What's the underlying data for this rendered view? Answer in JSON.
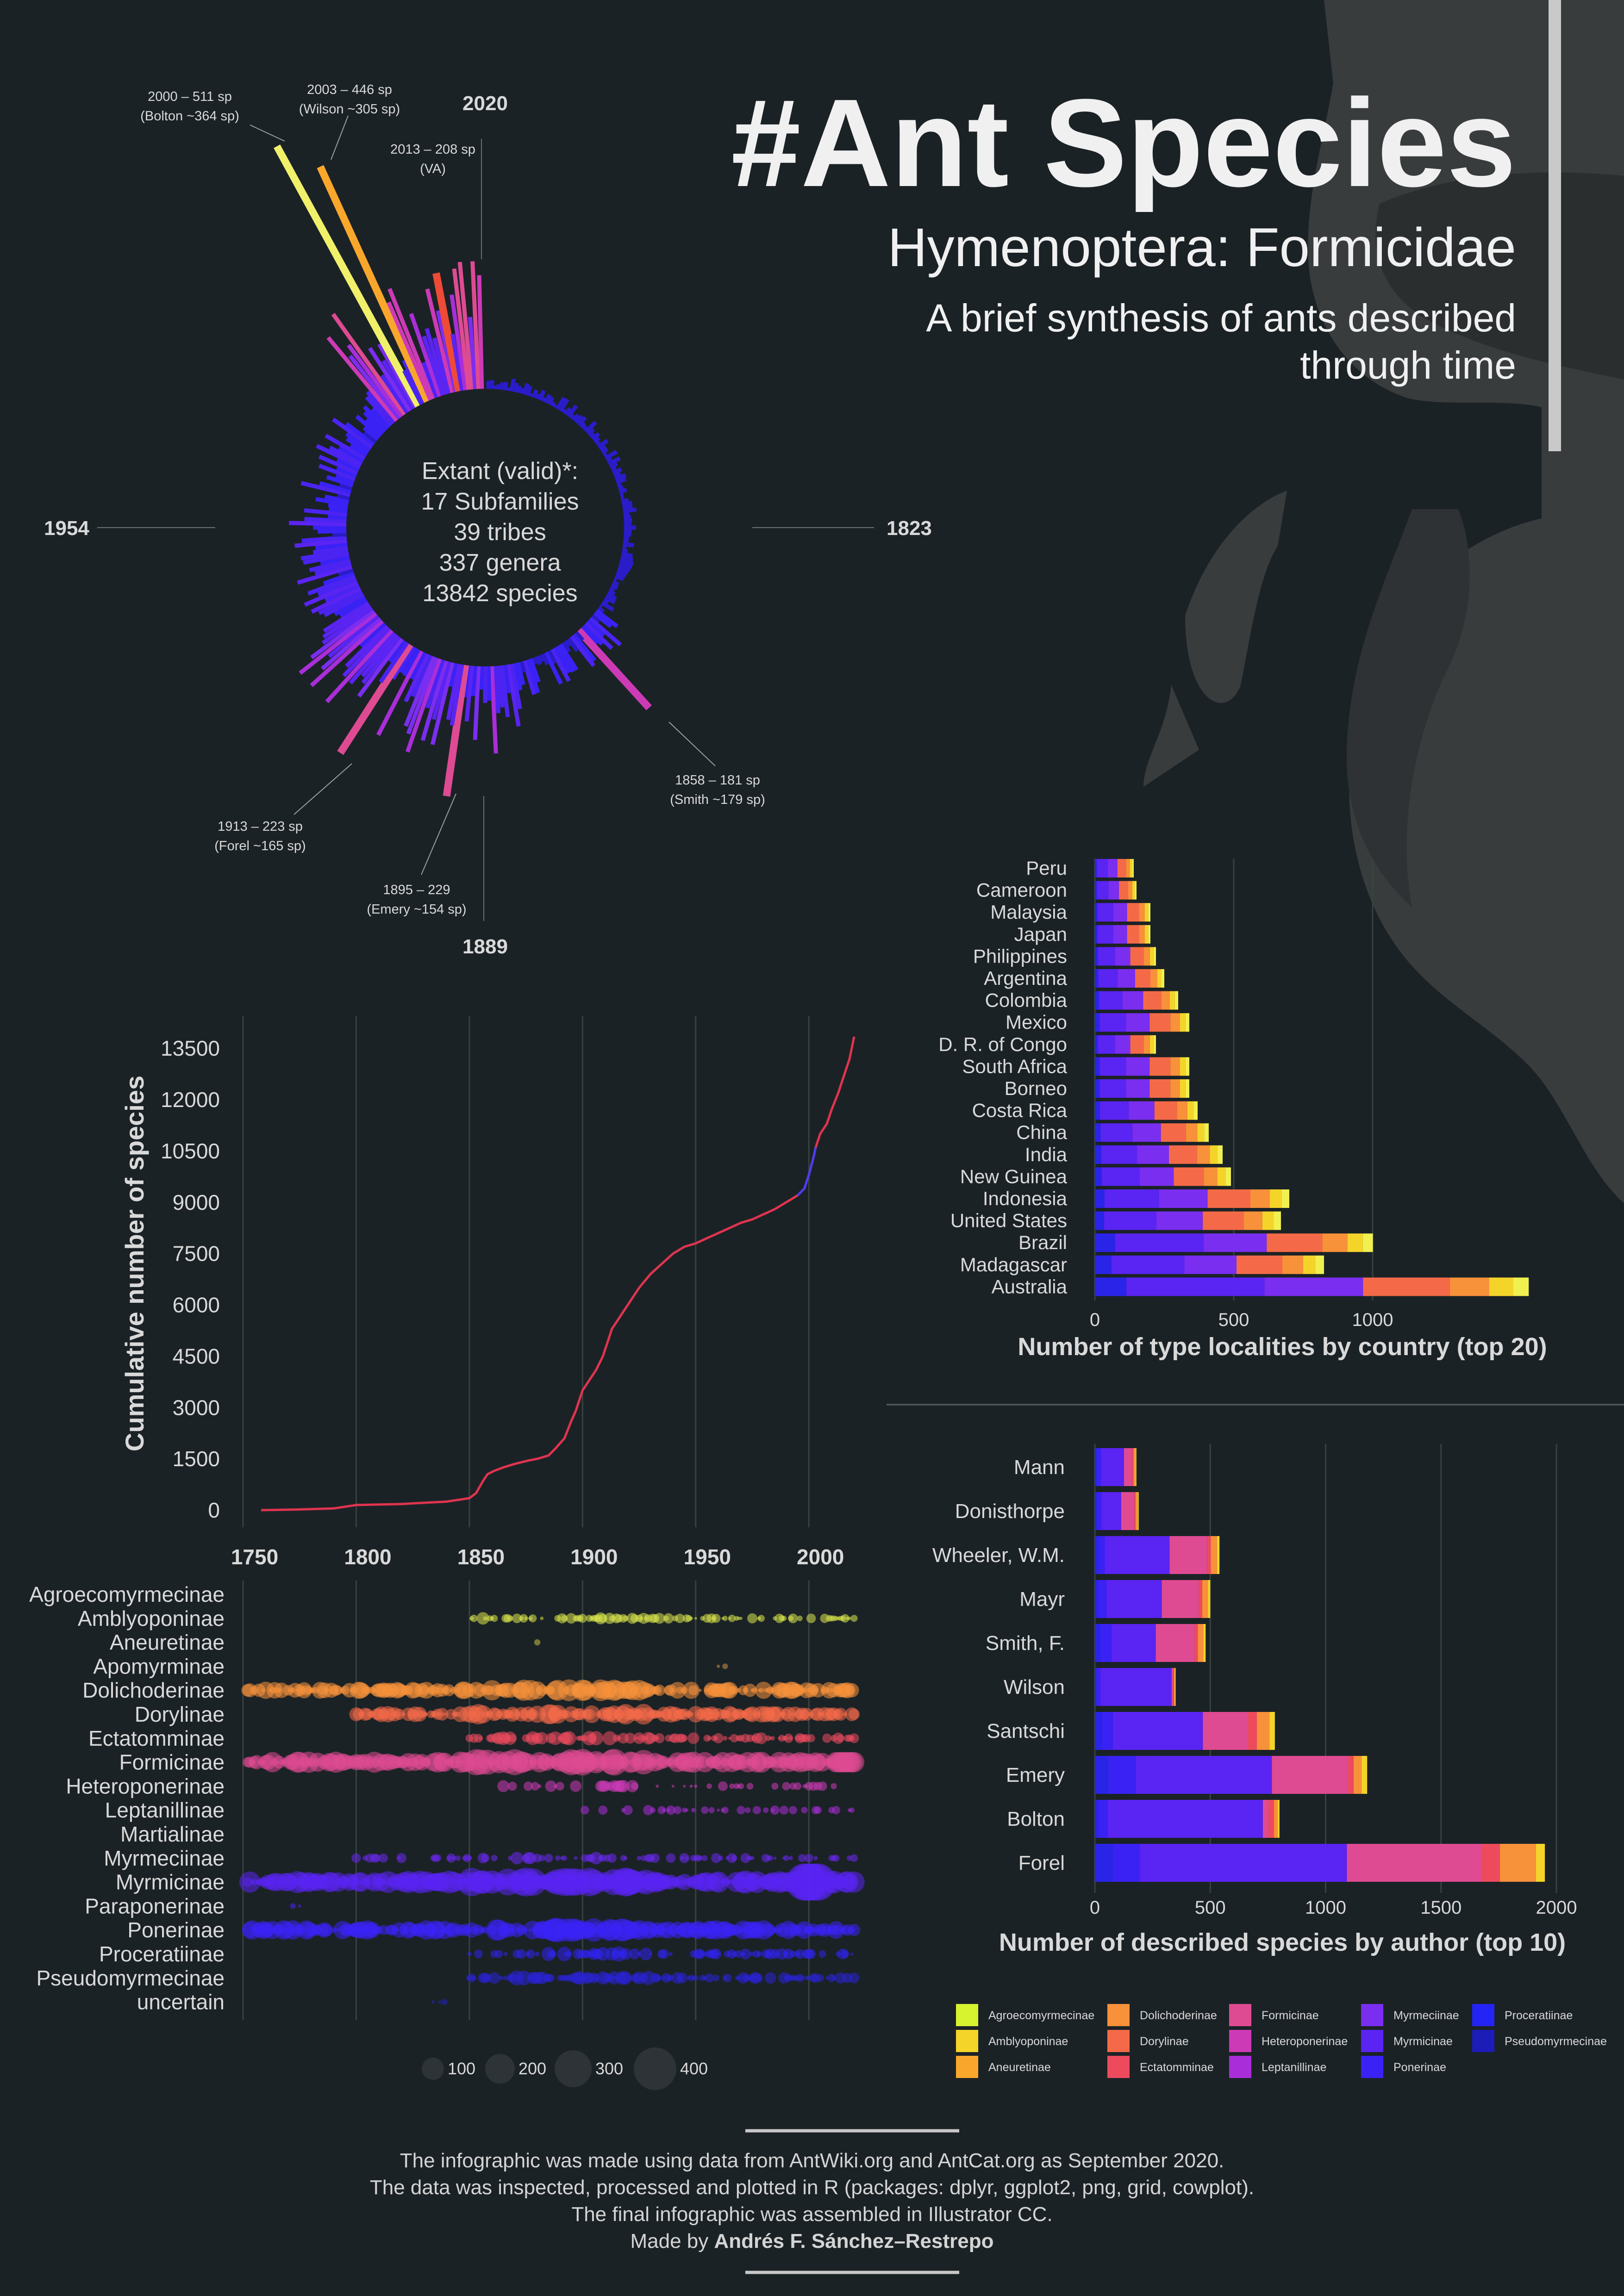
{
  "header": {
    "title": "#Ant Species",
    "subtitle": "Hymenoptera: Formicidae",
    "tagline_line1": "A brief synthesis of ants described",
    "tagline_line2": "through time"
  },
  "colors": {
    "background": "#1b2226",
    "text": "#d9d9d9",
    "line": "#e0344f",
    "grid": "#36433f",
    "ant_silhouette": "#3a3d3e",
    "subfamilies": {
      "Agroecomyrmecinae": "#d7f22e",
      "Amblyoponinae": "#f5d42a",
      "Aneuretinae": "#f8a72c",
      "Dolichoderinae": "#f7913a",
      "Dorylinae": "#f46a48",
      "Ectatomminae": "#ee4a5e",
      "Formicinae": "#de4b92",
      "Heteroponerinae": "#cd3ab6",
      "Leptanillinae": "#a92ed9",
      "Myrmeciinae": "#7a2ef0",
      "Myrmicinae": "#5a24f2",
      "Ponerinae": "#3a22f5",
      "Proceratiinae": "#2424f4",
      "Pseudomyrmecinae": "#1c1cb8"
    }
  },
  "radial": {
    "center_lines": [
      "Extant (valid)*:",
      "17 Subfamilies",
      "39 tribes",
      "337 genera",
      "13842 species"
    ],
    "year_labels": [
      "2020",
      "1823",
      "1889",
      "1954"
    ],
    "annotations": [
      {
        "line1": "2000 – 511 sp",
        "line2": "(Bolton ~364 sp)"
      },
      {
        "line1": "2003 – 446 sp",
        "line2": "(Wilson ~305 sp)"
      },
      {
        "line1": "2013 – 208 sp",
        "line2": "(VA)"
      },
      {
        "line1": "1858 – 181 sp",
        "line2": "(Smith ~179 sp)"
      },
      {
        "line1": "1895 – 229",
        "line2": "(Emery ~154 sp)"
      },
      {
        "line1": "1913 – 223 sp",
        "line2": "(Forel ~165 sp)"
      }
    ]
  },
  "legend_items": [
    "Agroecomyrmecinae",
    "Amblyoponinae",
    "Aneuretinae",
    "Dolichoderinae",
    "Dorylinae",
    "Ectatomminae",
    "Formicinae",
    "Heteroponerinae",
    "Leptanillinae",
    "Myrmeciinae",
    "Myrmicinae",
    "Ponerinae",
    "Proceratiinae",
    "Pseudomyrmecinae"
  ],
  "size_legend": [
    "100",
    "200",
    "300",
    "400"
  ],
  "footer": {
    "line1": "The infographic was made using data from AntWiki.org and AntCat.org as September 2020.",
    "line2": "The data was inspected, processed and plotted in R (packages: dplyr, ggplot2, png, grid, cowplot).",
    "line3": "The final infographic was assembled in Illustrator CC.",
    "line4_prefix": "Made by ",
    "author": "Andrés F. Sánchez–Restrepo"
  },
  "chart_data": [
    {
      "type": "bar",
      "name": "radial_species_per_year",
      "x_range": [
        1758,
        2020
      ],
      "highlighted": [
        {
          "year": 2000,
          "value": 511
        },
        {
          "year": 2003,
          "value": 446
        },
        {
          "year": 2013,
          "value": 208
        },
        {
          "year": 1858,
          "value": 181
        },
        {
          "year": 1895,
          "value": 229
        },
        {
          "year": 1913,
          "value": 223
        }
      ]
    },
    {
      "type": "line",
      "name": "cumulative",
      "title": "",
      "xlabel": "",
      "ylabel": "Cumulative number of species",
      "xlim": [
        1750,
        2020
      ],
      "ylim": [
        0,
        13800
      ],
      "xticks": [
        1750,
        1800,
        1850,
        1900,
        1950,
        2000
      ],
      "yticks": [
        0,
        1500,
        3000,
        4500,
        6000,
        7500,
        9000,
        10500,
        12000,
        13500
      ],
      "x": [
        1758,
        1775,
        1790,
        1800,
        1820,
        1840,
        1850,
        1853,
        1856,
        1858,
        1861,
        1865,
        1870,
        1876,
        1880,
        1885,
        1888,
        1892,
        1895,
        1897,
        1900,
        1903,
        1906,
        1909,
        1911,
        1913,
        1916,
        1919,
        1922,
        1925,
        1930,
        1935,
        1940,
        1945,
        1950,
        1955,
        1960,
        1965,
        1970,
        1975,
        1980,
        1985,
        1990,
        1995,
        1998,
        2000,
        2002,
        2003,
        2005,
        2008,
        2010,
        2013,
        2015,
        2018,
        2020
      ],
      "y": [
        0,
        20,
        50,
        150,
        180,
        250,
        350,
        500,
        850,
        1050,
        1150,
        1250,
        1350,
        1450,
        1500,
        1600,
        1800,
        2100,
        2600,
        2900,
        3500,
        3800,
        4100,
        4500,
        4900,
        5300,
        5600,
        5900,
        6200,
        6500,
        6900,
        7200,
        7500,
        7700,
        7800,
        7950,
        8100,
        8250,
        8400,
        8500,
        8650,
        8800,
        9000,
        9200,
        9400,
        9800,
        10300,
        10600,
        11000,
        11300,
        11700,
        12200,
        12600,
        13200,
        13842
      ]
    },
    {
      "type": "scatter",
      "name": "subfamily_timeline",
      "categories": [
        "Agroecomyrmecinae",
        "Amblyoponinae",
        "Aneuretinae",
        "Apomyrminae",
        "Dolichoderinae",
        "Dorylinae",
        "Ectatomminae",
        "Formicinae",
        "Heteroponerinae",
        "Leptanillinae",
        "Martialinae",
        "Myrmeciinae",
        "Myrmicinae",
        "Paraponerinae",
        "Ponerinae",
        "Proceratiinae",
        "Pseudomyrmecinae",
        "uncertain"
      ],
      "xlim": [
        1750,
        2020
      ],
      "size_legend": [
        100,
        200,
        300,
        400
      ]
    },
    {
      "type": "bar",
      "name": "type_localities",
      "title": "Number of type localities by country (top 20)",
      "stacked": true,
      "orientation": "horizontal",
      "xlim": [
        0,
        1450
      ],
      "xticks": [
        0,
        500,
        1000
      ],
      "categories": [
        "Peru",
        "Cameroon",
        "Malaysia",
        "Japan",
        "Philippines",
        "Argentina",
        "Colombia",
        "Mexico",
        "D. R. of Congo",
        "South Africa",
        "Borneo",
        "Costa Rica",
        "China",
        "India",
        "New Guinea",
        "Indonesia",
        "United States",
        "Brazil",
        "Madagascar",
        "Australia"
      ],
      "totals": [
        140,
        150,
        200,
        200,
        220,
        250,
        300,
        340,
        220,
        340,
        340,
        370,
        410,
        460,
        490,
        700,
        670,
        910,
        750,
        1420
      ]
    },
    {
      "type": "bar",
      "name": "author_species",
      "title": "Number of described species by author (top 10)",
      "stacked": true,
      "orientation": "horizontal",
      "xlim": [
        0,
        2100
      ],
      "xticks": [
        0,
        500,
        1000,
        1500,
        2000
      ],
      "categories": [
        "Mann",
        "Donisthorpe",
        "Wheeler, W.M.",
        "Mayr",
        "Smith, F.",
        "Wilson",
        "Santschi",
        "Emery",
        "Bolton",
        "Forel"
      ],
      "totals": [
        180,
        190,
        540,
        500,
        480,
        350,
        780,
        1180,
        800,
        1950
      ]
    }
  ]
}
